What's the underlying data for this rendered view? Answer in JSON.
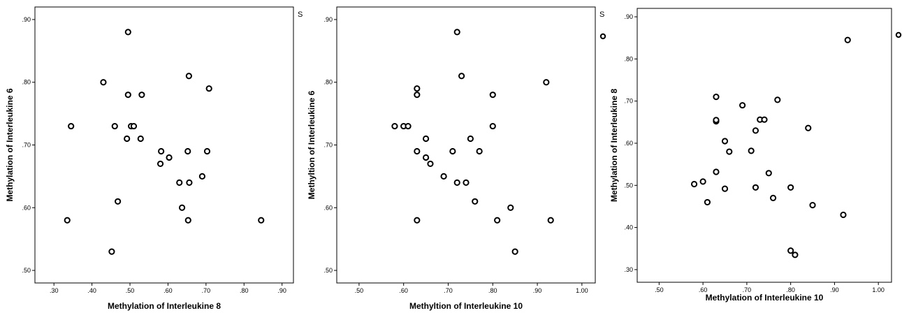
{
  "chart_data": [
    {
      "type": "scatter",
      "xlabel": "Methylation of Interleukine 8",
      "ylabel": "Methylation of Interleukine 6",
      "xlim": [
        0.25,
        0.93
      ],
      "ylim": [
        0.48,
        0.92
      ],
      "xticks": [
        0.3,
        0.4,
        0.5,
        0.6,
        0.7,
        0.8,
        0.9
      ],
      "xtick_labels": [
        ".30",
        ".40",
        ".50",
        ".60",
        ".70",
        ".80",
        ".90"
      ],
      "yticks": [
        0.5,
        0.6,
        0.7,
        0.8,
        0.9
      ],
      "ytick_labels": [
        ".50",
        ".60",
        ".70",
        ".80",
        ".90"
      ],
      "marker": "hollow-circle",
      "grid": false,
      "legend_glyph": "S",
      "points": [
        {
          "x": 0.335,
          "y": 0.58
        },
        {
          "x": 0.345,
          "y": 0.73
        },
        {
          "x": 0.43,
          "y": 0.8
        },
        {
          "x": 0.452,
          "y": 0.53
        },
        {
          "x": 0.46,
          "y": 0.73
        },
        {
          "x": 0.468,
          "y": 0.61
        },
        {
          "x": 0.492,
          "y": 0.71
        },
        {
          "x": 0.495,
          "y": 0.78
        },
        {
          "x": 0.495,
          "y": 0.88
        },
        {
          "x": 0.503,
          "y": 0.73
        },
        {
          "x": 0.51,
          "y": 0.73
        },
        {
          "x": 0.528,
          "y": 0.71
        },
        {
          "x": 0.531,
          "y": 0.78
        },
        {
          "x": 0.58,
          "y": 0.67
        },
        {
          "x": 0.582,
          "y": 0.69
        },
        {
          "x": 0.603,
          "y": 0.68
        },
        {
          "x": 0.63,
          "y": 0.64
        },
        {
          "x": 0.637,
          "y": 0.6
        },
        {
          "x": 0.652,
          "y": 0.69
        },
        {
          "x": 0.653,
          "y": 0.58
        },
        {
          "x": 0.655,
          "y": 0.81
        },
        {
          "x": 0.656,
          "y": 0.64
        },
        {
          "x": 0.69,
          "y": 0.65
        },
        {
          "x": 0.703,
          "y": 0.69
        },
        {
          "x": 0.708,
          "y": 0.79
        },
        {
          "x": 0.845,
          "y": 0.58
        }
      ]
    },
    {
      "type": "scatter",
      "xlabel": "Methyltion of Interleukine 10",
      "ylabel": "Methyltion of Interleukine 6",
      "xlim": [
        0.45,
        1.03
      ],
      "ylim": [
        0.48,
        0.92
      ],
      "xticks": [
        0.5,
        0.6,
        0.7,
        0.8,
        0.9,
        1.0
      ],
      "xtick_labels": [
        ".50",
        ".60",
        ".70",
        ".80",
        ".90",
        "1.00"
      ],
      "yticks": [
        0.5,
        0.6,
        0.7,
        0.8,
        0.9
      ],
      "ytick_labels": [
        ".50",
        ".60",
        ".70",
        ".80",
        ".90"
      ],
      "marker": "hollow-circle",
      "grid": false,
      "legend_glyph": "S",
      "points": [
        {
          "x": 0.58,
          "y": 0.73
        },
        {
          "x": 0.6,
          "y": 0.73
        },
        {
          "x": 0.61,
          "y": 0.73
        },
        {
          "x": 0.63,
          "y": 0.79
        },
        {
          "x": 0.63,
          "y": 0.78
        },
        {
          "x": 0.63,
          "y": 0.69
        },
        {
          "x": 0.63,
          "y": 0.58
        },
        {
          "x": 0.65,
          "y": 0.71
        },
        {
          "x": 0.65,
          "y": 0.68
        },
        {
          "x": 0.66,
          "y": 0.67
        },
        {
          "x": 0.69,
          "y": 0.65
        },
        {
          "x": 0.71,
          "y": 0.69
        },
        {
          "x": 0.72,
          "y": 0.88
        },
        {
          "x": 0.72,
          "y": 0.64
        },
        {
          "x": 0.73,
          "y": 0.81
        },
        {
          "x": 0.74,
          "y": 0.64
        },
        {
          "x": 0.75,
          "y": 0.71
        },
        {
          "x": 0.76,
          "y": 0.61
        },
        {
          "x": 0.77,
          "y": 0.69
        },
        {
          "x": 0.8,
          "y": 0.78
        },
        {
          "x": 0.8,
          "y": 0.73
        },
        {
          "x": 0.81,
          "y": 0.58
        },
        {
          "x": 0.84,
          "y": 0.6
        },
        {
          "x": 0.85,
          "y": 0.53
        },
        {
          "x": 0.92,
          "y": 0.8
        },
        {
          "x": 0.93,
          "y": 0.58
        }
      ]
    },
    {
      "type": "scatter",
      "xlabel": "Methylation of Interleukine 10",
      "ylabel": "Methylation of Interleukine 8",
      "xlim": [
        0.45,
        1.03
      ],
      "ylim": [
        0.27,
        0.92
      ],
      "xticks": [
        0.5,
        0.6,
        0.7,
        0.8,
        0.9,
        1.0
      ],
      "xtick_labels": [
        ".50",
        ".60",
        ".70",
        ".80",
        ".90",
        "1.00"
      ],
      "yticks": [
        0.3,
        0.4,
        0.5,
        0.6,
        0.7,
        0.8,
        0.9
      ],
      "ytick_labels": [
        ".30",
        ".40",
        ".50",
        ".60",
        ".70",
        ".80",
        ".90"
      ],
      "marker": "hollow-circle",
      "grid": false,
      "points": [
        {
          "x": 0.58,
          "y": 0.503
        },
        {
          "x": 0.6,
          "y": 0.509
        },
        {
          "x": 0.61,
          "y": 0.46
        },
        {
          "x": 0.63,
          "y": 0.71
        },
        {
          "x": 0.63,
          "y": 0.652
        },
        {
          "x": 0.63,
          "y": 0.655
        },
        {
          "x": 0.63,
          "y": 0.532
        },
        {
          "x": 0.65,
          "y": 0.605
        },
        {
          "x": 0.65,
          "y": 0.492
        },
        {
          "x": 0.66,
          "y": 0.58
        },
        {
          "x": 0.69,
          "y": 0.69
        },
        {
          "x": 0.71,
          "y": 0.582
        },
        {
          "x": 0.72,
          "y": 0.63
        },
        {
          "x": 0.72,
          "y": 0.495
        },
        {
          "x": 0.73,
          "y": 0.656
        },
        {
          "x": 0.74,
          "y": 0.656
        },
        {
          "x": 0.75,
          "y": 0.529
        },
        {
          "x": 0.76,
          "y": 0.47
        },
        {
          "x": 0.77,
          "y": 0.703
        },
        {
          "x": 0.8,
          "y": 0.495
        },
        {
          "x": 0.8,
          "y": 0.345
        },
        {
          "x": 0.81,
          "y": 0.335
        },
        {
          "x": 0.84,
          "y": 0.636
        },
        {
          "x": 0.85,
          "y": 0.453
        },
        {
          "x": 0.92,
          "y": 0.43
        },
        {
          "x": 0.93,
          "y": 0.845
        }
      ]
    }
  ]
}
